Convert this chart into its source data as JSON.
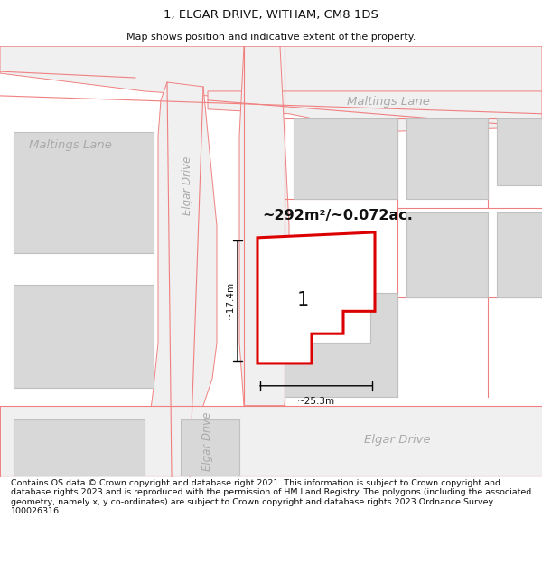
{
  "title": "1, ELGAR DRIVE, WITHAM, CM8 1DS",
  "subtitle": "Map shows position and indicative extent of the property.",
  "footer": "Contains OS data © Crown copyright and database right 2021. This information is subject to Crown copyright and database rights 2023 and is reproduced with the permission of HM Land Registry. The polygons (including the associated geometry, namely x, y co-ordinates) are subject to Crown copyright and database rights 2023 Ordnance Survey 100026316.",
  "map_bg": "#f2f2f2",
  "building_fill": "#d8d8d8",
  "building_edge": "#c0c0c0",
  "road_pink": "#f08080",
  "road_fill": "#f8f8f8",
  "subject_fill": "#ffffff",
  "subject_edge": "#dd0000",
  "area_text": "~292m²/~0.072ac.",
  "number_label": "1",
  "dim_width": "~25.3m",
  "dim_height": "~17.4m"
}
